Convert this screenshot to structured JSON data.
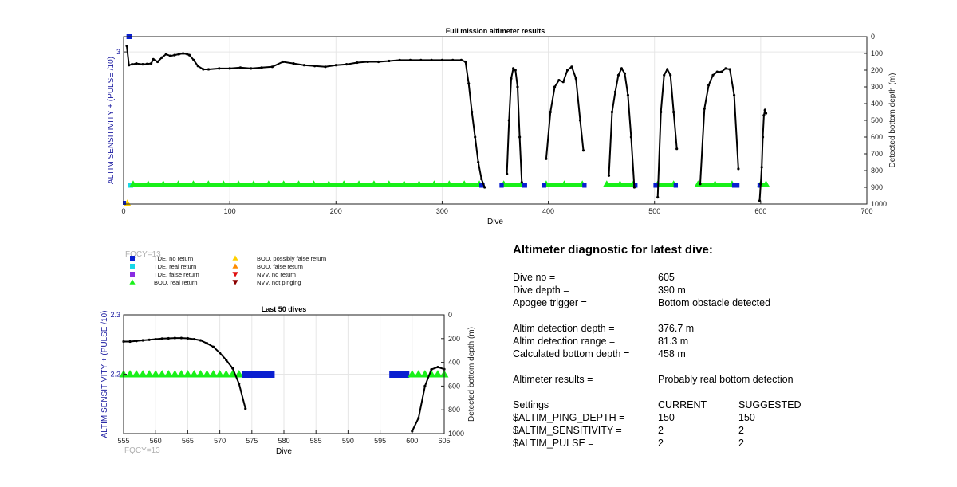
{
  "chart_data": [
    {
      "type": "scatter",
      "title": "Full mission altimeter results",
      "xlabel": "Dive",
      "ylabel": "ALTIM SENSITIVITY + (PULSE /10)",
      "y2label": "Detected bottom depth (m)",
      "xlim": [
        0,
        700
      ],
      "ylim": [
        2,
        3.1
      ],
      "y2lim": [
        0,
        1000
      ],
      "y2_reversed": true,
      "xticks": [
        "0",
        "100",
        "200",
        "300",
        "400",
        "500",
        "600",
        "700"
      ],
      "yticks": [
        "3"
      ],
      "y2ticks": [
        "0",
        "100",
        "200",
        "300",
        "400",
        "500",
        "600",
        "700",
        "800",
        "900",
        "1000"
      ],
      "grid": true,
      "corner_note": "",
      "depth_series": [
        {
          "x": [
            3,
            5,
            8,
            12,
            18,
            22,
            26,
            28,
            32,
            36,
            40,
            44,
            48,
            52,
            56,
            60,
            62,
            66,
            70,
            75,
            80,
            90,
            100,
            110,
            120,
            130,
            140,
            150,
            160,
            170,
            180,
            190,
            200,
            210,
            220,
            230,
            240,
            250,
            260,
            270,
            280,
            290,
            300,
            310,
            318,
            322,
            325,
            328,
            331,
            334,
            337,
            340
          ],
          "y": [
            55,
            170,
            165,
            160,
            165,
            163,
            160,
            135,
            150,
            125,
            105,
            115,
            110,
            105,
            100,
            105,
            110,
            140,
            175,
            195,
            195,
            190,
            190,
            185,
            190,
            185,
            180,
            150,
            160,
            170,
            175,
            180,
            170,
            165,
            155,
            150,
            150,
            145,
            140,
            140,
            140,
            140,
            140,
            140,
            140,
            150,
            280,
            450,
            600,
            750,
            850,
            900
          ]
        },
        {
          "x": [
            361,
            363,
            365,
            367,
            369,
            371,
            373,
            375
          ],
          "y": [
            820,
            500,
            250,
            190,
            200,
            300,
            600,
            870
          ]
        },
        {
          "x": [
            398,
            402,
            406,
            410,
            414,
            418,
            422,
            426,
            430,
            433
          ],
          "y": [
            730,
            450,
            300,
            260,
            270,
            200,
            180,
            250,
            500,
            680
          ]
        },
        {
          "x": [
            457,
            460,
            463,
            466,
            469,
            472,
            475,
            478,
            481
          ],
          "y": [
            830,
            450,
            330,
            230,
            190,
            220,
            350,
            600,
            900
          ]
        },
        {
          "x": [
            503,
            506,
            509,
            512,
            515,
            518,
            521
          ],
          "y": [
            960,
            450,
            230,
            195,
            230,
            450,
            670
          ]
        },
        {
          "x": [
            543,
            547,
            551,
            555,
            559,
            563,
            567,
            571,
            575,
            579
          ],
          "y": [
            880,
            430,
            290,
            230,
            210,
            210,
            190,
            195,
            350,
            790
          ]
        },
        {
          "x": [
            599,
            600,
            601,
            602,
            603,
            604,
            605
          ],
          "y": [
            980,
            880,
            780,
            600,
            470,
            440,
            458
          ]
        }
      ],
      "event_bands": [
        {
          "type": "TDE, real return",
          "x_ranges": [
            [
              4,
              9
            ]
          ]
        },
        {
          "type": "BOD, real return",
          "x_ranges": [
            [
              9,
              335
            ],
            [
              358,
              375
            ],
            [
              398,
              432
            ],
            [
              455,
              480
            ],
            [
              503,
              518
            ],
            [
              541,
              573
            ],
            [
              600,
              605
            ]
          ]
        },
        {
          "type": "TDE, no return",
          "x_ranges": [
            [
              335,
              340
            ],
            [
              354,
              358
            ],
            [
              375,
              380
            ],
            [
              394,
              398
            ],
            [
              432,
              436
            ],
            [
              480,
              484
            ],
            [
              499,
              503
            ],
            [
              518,
              522
            ],
            [
              573,
              580
            ],
            [
              597,
              600
            ]
          ]
        }
      ],
      "top_markers": [
        {
          "type": "TDE, no return",
          "x": 5,
          "y": 3.1
        }
      ]
    },
    {
      "type": "scatter",
      "title": "Last 50 dives",
      "xlabel": "Dive",
      "ylabel": "ALTIM SENSITIVITY + (PULSE /10)",
      "y2label": "Detected bottom depth (m)",
      "xlim": [
        555,
        605
      ],
      "ylim": [
        2.1,
        2.3
      ],
      "y2lim": [
        0,
        1000
      ],
      "y2_reversed": true,
      "xticks": [
        "555",
        "560",
        "565",
        "570",
        "575",
        "580",
        "585",
        "590",
        "595",
        "600",
        "605"
      ],
      "yticks": [
        "2.3",
        "2.2"
      ],
      "y2ticks": [
        "0",
        "200",
        "400",
        "600",
        "800",
        "1000"
      ],
      "grid": true,
      "corner_note": "FQCY=13",
      "depth_series": [
        {
          "x": [
            555,
            556,
            557,
            558,
            559,
            560,
            561,
            562,
            563,
            564,
            565,
            566,
            567,
            568,
            569,
            570,
            571,
            572,
            573,
            574
          ],
          "y": [
            225,
            225,
            220,
            215,
            210,
            205,
            200,
            198,
            195,
            195,
            198,
            205,
            215,
            240,
            270,
            320,
            380,
            450,
            580,
            790
          ]
        },
        {
          "x": [
            600,
            601,
            602,
            603,
            604,
            605
          ],
          "y": [
            980,
            870,
            600,
            460,
            440,
            458
          ]
        }
      ],
      "markers": [
        {
          "type": "BOD, real return",
          "x": [
            555,
            556,
            557,
            558,
            559,
            560,
            561,
            562,
            563,
            564,
            565,
            566,
            567,
            568,
            569,
            570,
            571,
            572,
            573
          ],
          "y": 2.2
        },
        {
          "type": "TDE, no return",
          "x": [
            574,
            575,
            576,
            577,
            578
          ],
          "y": 2.2
        },
        {
          "type": "TDE, no return",
          "x": [
            597,
            598,
            599
          ],
          "y": 2.2
        },
        {
          "type": "BOD, real return",
          "x": [
            600,
            601,
            602,
            603,
            604,
            605
          ],
          "y": 2.2
        }
      ]
    }
  ],
  "legend": {
    "overlay": "FQCY=13",
    "items": [
      {
        "label": "TDE, no return",
        "shape": "square",
        "color": "#0a1fd0"
      },
      {
        "label": "TDE, real return",
        "shape": "square",
        "color": "#18d8e8"
      },
      {
        "label": "TDE, false return",
        "shape": "square",
        "color": "#8a2be2"
      },
      {
        "label": "BOD, real return",
        "shape": "triangle-up",
        "color": "#19f019"
      },
      {
        "label": "BOD, possibly false return",
        "shape": "triangle-up",
        "color": "#ffd000"
      },
      {
        "label": "BOD, false return",
        "shape": "triangle-up",
        "color": "#ff8c00"
      },
      {
        "label": "NVV, no return",
        "shape": "triangle-down",
        "color": "#e01010"
      },
      {
        "label": "NVV, not pinging",
        "shape": "triangle-down",
        "color": "#8b0000"
      }
    ]
  },
  "diagnostic": {
    "title": "Altimeter diagnostic for latest dive:",
    "dive_no_label": "Dive no =",
    "dive_no": "605",
    "dive_depth_label": "Dive depth =",
    "dive_depth": "390 m",
    "apogee_label": "Apogee trigger =",
    "apogee": "Bottom obstacle detected",
    "det_depth_label": "Altim detection depth =",
    "det_depth": "376.7 m",
    "det_range_label": "Altim detection range =",
    "det_range": "81.3 m",
    "calc_depth_label": "Calculated bottom depth =",
    "calc_depth": "458 m",
    "result_label": "Altimeter results =",
    "result": "Probably real bottom detection",
    "settings_label": "Settings",
    "current_label": "CURRENT",
    "suggested_label": "SUGGESTED",
    "settings": [
      {
        "name": "$ALTIM_PING_DEPTH =",
        "current": "150",
        "suggested": "150"
      },
      {
        "name": "$ALTIM_SENSITIVITY =",
        "current": "2",
        "suggested": "2"
      },
      {
        "name": "$ALTIM_PULSE =",
        "current": "2",
        "suggested": "2"
      }
    ]
  },
  "colors": {
    "axis_label": "#1a1aa0",
    "depth_line": "#000000",
    "grid": "#e6e6e6",
    "overlay_text": "#b0b0b0"
  }
}
